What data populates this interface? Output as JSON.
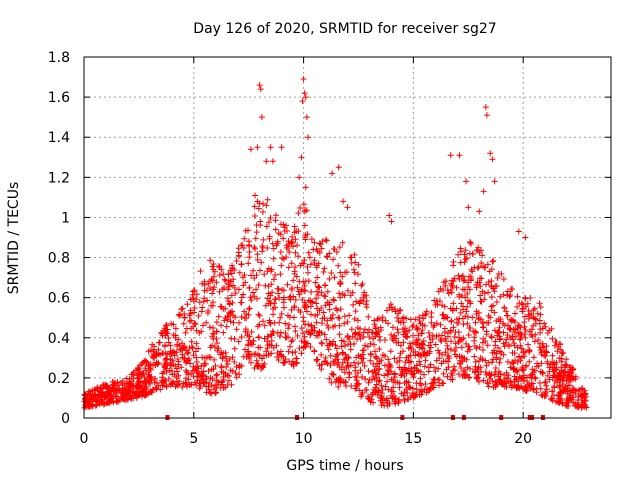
{
  "chart_data": {
    "type": "scatter",
    "title": "Day 126 of 2020, SRMTID for receiver sg27",
    "xlabel": "GPS time / hours",
    "ylabel": "SRMTID / TECUs",
    "xlim": [
      0,
      24
    ],
    "ylim": [
      0,
      1.8
    ],
    "xticks": [
      0,
      5,
      10,
      15,
      20
    ],
    "yticks": [
      0,
      0.2,
      0.4,
      0.6,
      0.8,
      1,
      1.2,
      1.4,
      1.6,
      1.8
    ],
    "xtick_labels": [
      "0",
      "5",
      "10",
      "15",
      "20"
    ],
    "ytick_labels": [
      "0",
      "0.2",
      "0.4",
      "0.6",
      "0.8",
      "1",
      "1.2",
      "1.4",
      "1.6",
      "1.8"
    ],
    "grid": true,
    "marker": "+",
    "color": "#ff0000",
    "bottom_markers": [
      3.8,
      9.7,
      14.5,
      16.8,
      17.3,
      19.0,
      20.3,
      20.4,
      20.9
    ],
    "envelope": [
      [
        0.0,
        0.05,
        0.12
      ],
      [
        0.5,
        0.06,
        0.15
      ],
      [
        1.0,
        0.07,
        0.17
      ],
      [
        1.5,
        0.08,
        0.19
      ],
      [
        2.0,
        0.09,
        0.2
      ],
      [
        2.5,
        0.1,
        0.26
      ],
      [
        3.0,
        0.12,
        0.36
      ],
      [
        3.5,
        0.14,
        0.44
      ],
      [
        4.0,
        0.16,
        0.5
      ],
      [
        4.5,
        0.15,
        0.55
      ],
      [
        5.0,
        0.16,
        0.7
      ],
      [
        5.5,
        0.12,
        0.78
      ],
      [
        6.0,
        0.12,
        0.8
      ],
      [
        6.5,
        0.14,
        0.72
      ],
      [
        7.0,
        0.2,
        0.85
      ],
      [
        7.5,
        0.28,
        1.0
      ],
      [
        8.0,
        0.22,
        1.2
      ],
      [
        8.5,
        0.3,
        1.05
      ],
      [
        9.0,
        0.28,
        1.0
      ],
      [
        9.5,
        0.25,
        0.95
      ],
      [
        10.0,
        0.3,
        1.1
      ],
      [
        10.5,
        0.3,
        0.9
      ],
      [
        11.0,
        0.2,
        0.9
      ],
      [
        11.5,
        0.15,
        0.85
      ],
      [
        12.0,
        0.15,
        0.9
      ],
      [
        12.5,
        0.1,
        0.8
      ],
      [
        13.0,
        0.08,
        0.55
      ],
      [
        13.5,
        0.06,
        0.5
      ],
      [
        14.0,
        0.06,
        0.6
      ],
      [
        14.5,
        0.08,
        0.55
      ],
      [
        15.0,
        0.1,
        0.5
      ],
      [
        15.5,
        0.12,
        0.55
      ],
      [
        16.0,
        0.15,
        0.6
      ],
      [
        16.5,
        0.18,
        0.7
      ],
      [
        17.0,
        0.2,
        0.85
      ],
      [
        17.5,
        0.2,
        0.9
      ],
      [
        18.0,
        0.18,
        0.85
      ],
      [
        18.5,
        0.15,
        0.8
      ],
      [
        19.0,
        0.15,
        0.75
      ],
      [
        19.5,
        0.15,
        0.65
      ],
      [
        20.0,
        0.14,
        0.6
      ],
      [
        20.5,
        0.12,
        0.6
      ],
      [
        21.0,
        0.1,
        0.55
      ],
      [
        21.5,
        0.08,
        0.42
      ],
      [
        22.0,
        0.06,
        0.3
      ],
      [
        22.5,
        0.05,
        0.2
      ],
      [
        22.9,
        0.05,
        0.12
      ]
    ],
    "spikes": [
      [
        8.0,
        1.66
      ],
      [
        8.05,
        1.64
      ],
      [
        8.1,
        1.5
      ],
      [
        7.6,
        1.34
      ],
      [
        7.9,
        1.35
      ],
      [
        8.3,
        1.28
      ],
      [
        8.5,
        1.35
      ],
      [
        8.6,
        1.28
      ],
      [
        9.0,
        1.35
      ],
      [
        9.8,
        1.2
      ],
      [
        9.95,
        1.58
      ],
      [
        10.0,
        1.69
      ],
      [
        10.05,
        1.62
      ],
      [
        10.1,
        1.6
      ],
      [
        10.15,
        1.5
      ],
      [
        10.2,
        1.4
      ],
      [
        9.9,
        1.3
      ],
      [
        10.1,
        1.15
      ],
      [
        11.3,
        1.22
      ],
      [
        11.6,
        1.25
      ],
      [
        11.8,
        1.08
      ],
      [
        12.0,
        1.05
      ],
      [
        13.9,
        1.01
      ],
      [
        14.0,
        0.98
      ],
      [
        16.7,
        1.31
      ],
      [
        17.1,
        1.31
      ],
      [
        17.4,
        1.18
      ],
      [
        17.5,
        1.05
      ],
      [
        18.0,
        1.03
      ],
      [
        18.2,
        1.13
      ],
      [
        18.3,
        1.55
      ],
      [
        18.35,
        1.51
      ],
      [
        18.5,
        1.32
      ],
      [
        18.6,
        1.29
      ],
      [
        18.7,
        1.18
      ],
      [
        19.8,
        0.93
      ],
      [
        20.1,
        0.9
      ]
    ]
  }
}
